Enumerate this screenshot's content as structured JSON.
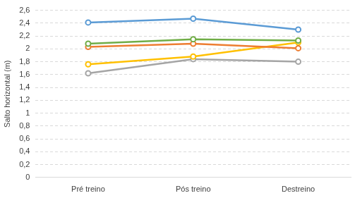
{
  "chart_data": {
    "type": "line",
    "y_label": "Salto horizontal (m)",
    "categories": [
      "Pré treino",
      "Pós treino",
      "Destreino"
    ],
    "series": [
      {
        "color": "#5b9bd5",
        "values": [
          2.41,
          2.47,
          2.3
        ]
      },
      {
        "color": "#70ad47",
        "values": [
          2.08,
          2.15,
          2.13
        ]
      },
      {
        "color": "#ed7d31",
        "values": [
          2.03,
          2.08,
          2.01
        ]
      },
      {
        "color": "#ffc000",
        "values": [
          1.76,
          1.88,
          2.1
        ]
      },
      {
        "color": "#a5a5a5",
        "values": [
          1.62,
          1.84,
          1.8
        ]
      }
    ],
    "ylim": [
      0,
      2.6
    ],
    "yticks": [
      0,
      {
        "value": 0.2,
        "label": "0,2"
      },
      {
        "value": 0.4,
        "label": "0,4"
      },
      {
        "value": 0.6,
        "label": "0,6"
      },
      {
        "value": 0.8,
        "label": "0,8"
      },
      1,
      {
        "value": 1.2,
        "label": "1,2"
      },
      {
        "value": 1.4,
        "label": "1,4"
      },
      {
        "value": 1.6,
        "label": "1,6"
      },
      {
        "value": 1.8,
        "label": "1,8"
      },
      2,
      {
        "value": 2.2,
        "label": "2,2"
      },
      {
        "value": 2.4,
        "label": "2,4"
      },
      {
        "value": 2.6,
        "label": "2,6"
      }
    ],
    "grid": true,
    "marker": "circle"
  }
}
